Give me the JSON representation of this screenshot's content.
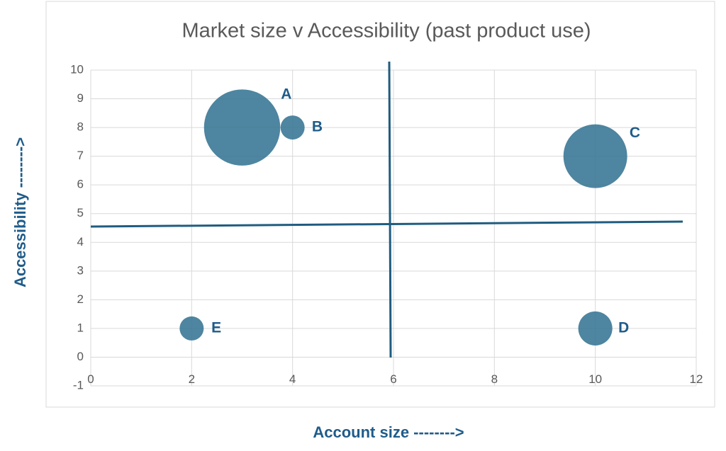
{
  "chart_data": {
    "type": "bubble",
    "title": "Market size v Accessibility (past product use)",
    "xlabel": "Account size -------->",
    "ylabel": "Accessibility -------->",
    "x": [
      3,
      4,
      10,
      10,
      2
    ],
    "y": [
      8,
      8,
      7,
      1,
      1
    ],
    "sizes": [
      10,
      1,
      7,
      2,
      1
    ],
    "labels": [
      "A",
      "B",
      "C",
      "D",
      "E"
    ],
    "color": "#3b7896",
    "xlim": [
      0,
      12
    ],
    "xticks": [
      0,
      2,
      4,
      6,
      8,
      10,
      12
    ],
    "ylim": [
      -1,
      10
    ],
    "yticks": [
      -1,
      0,
      1,
      2,
      3,
      4,
      5,
      6,
      7,
      8,
      9,
      10
    ],
    "grid": true
  }
}
